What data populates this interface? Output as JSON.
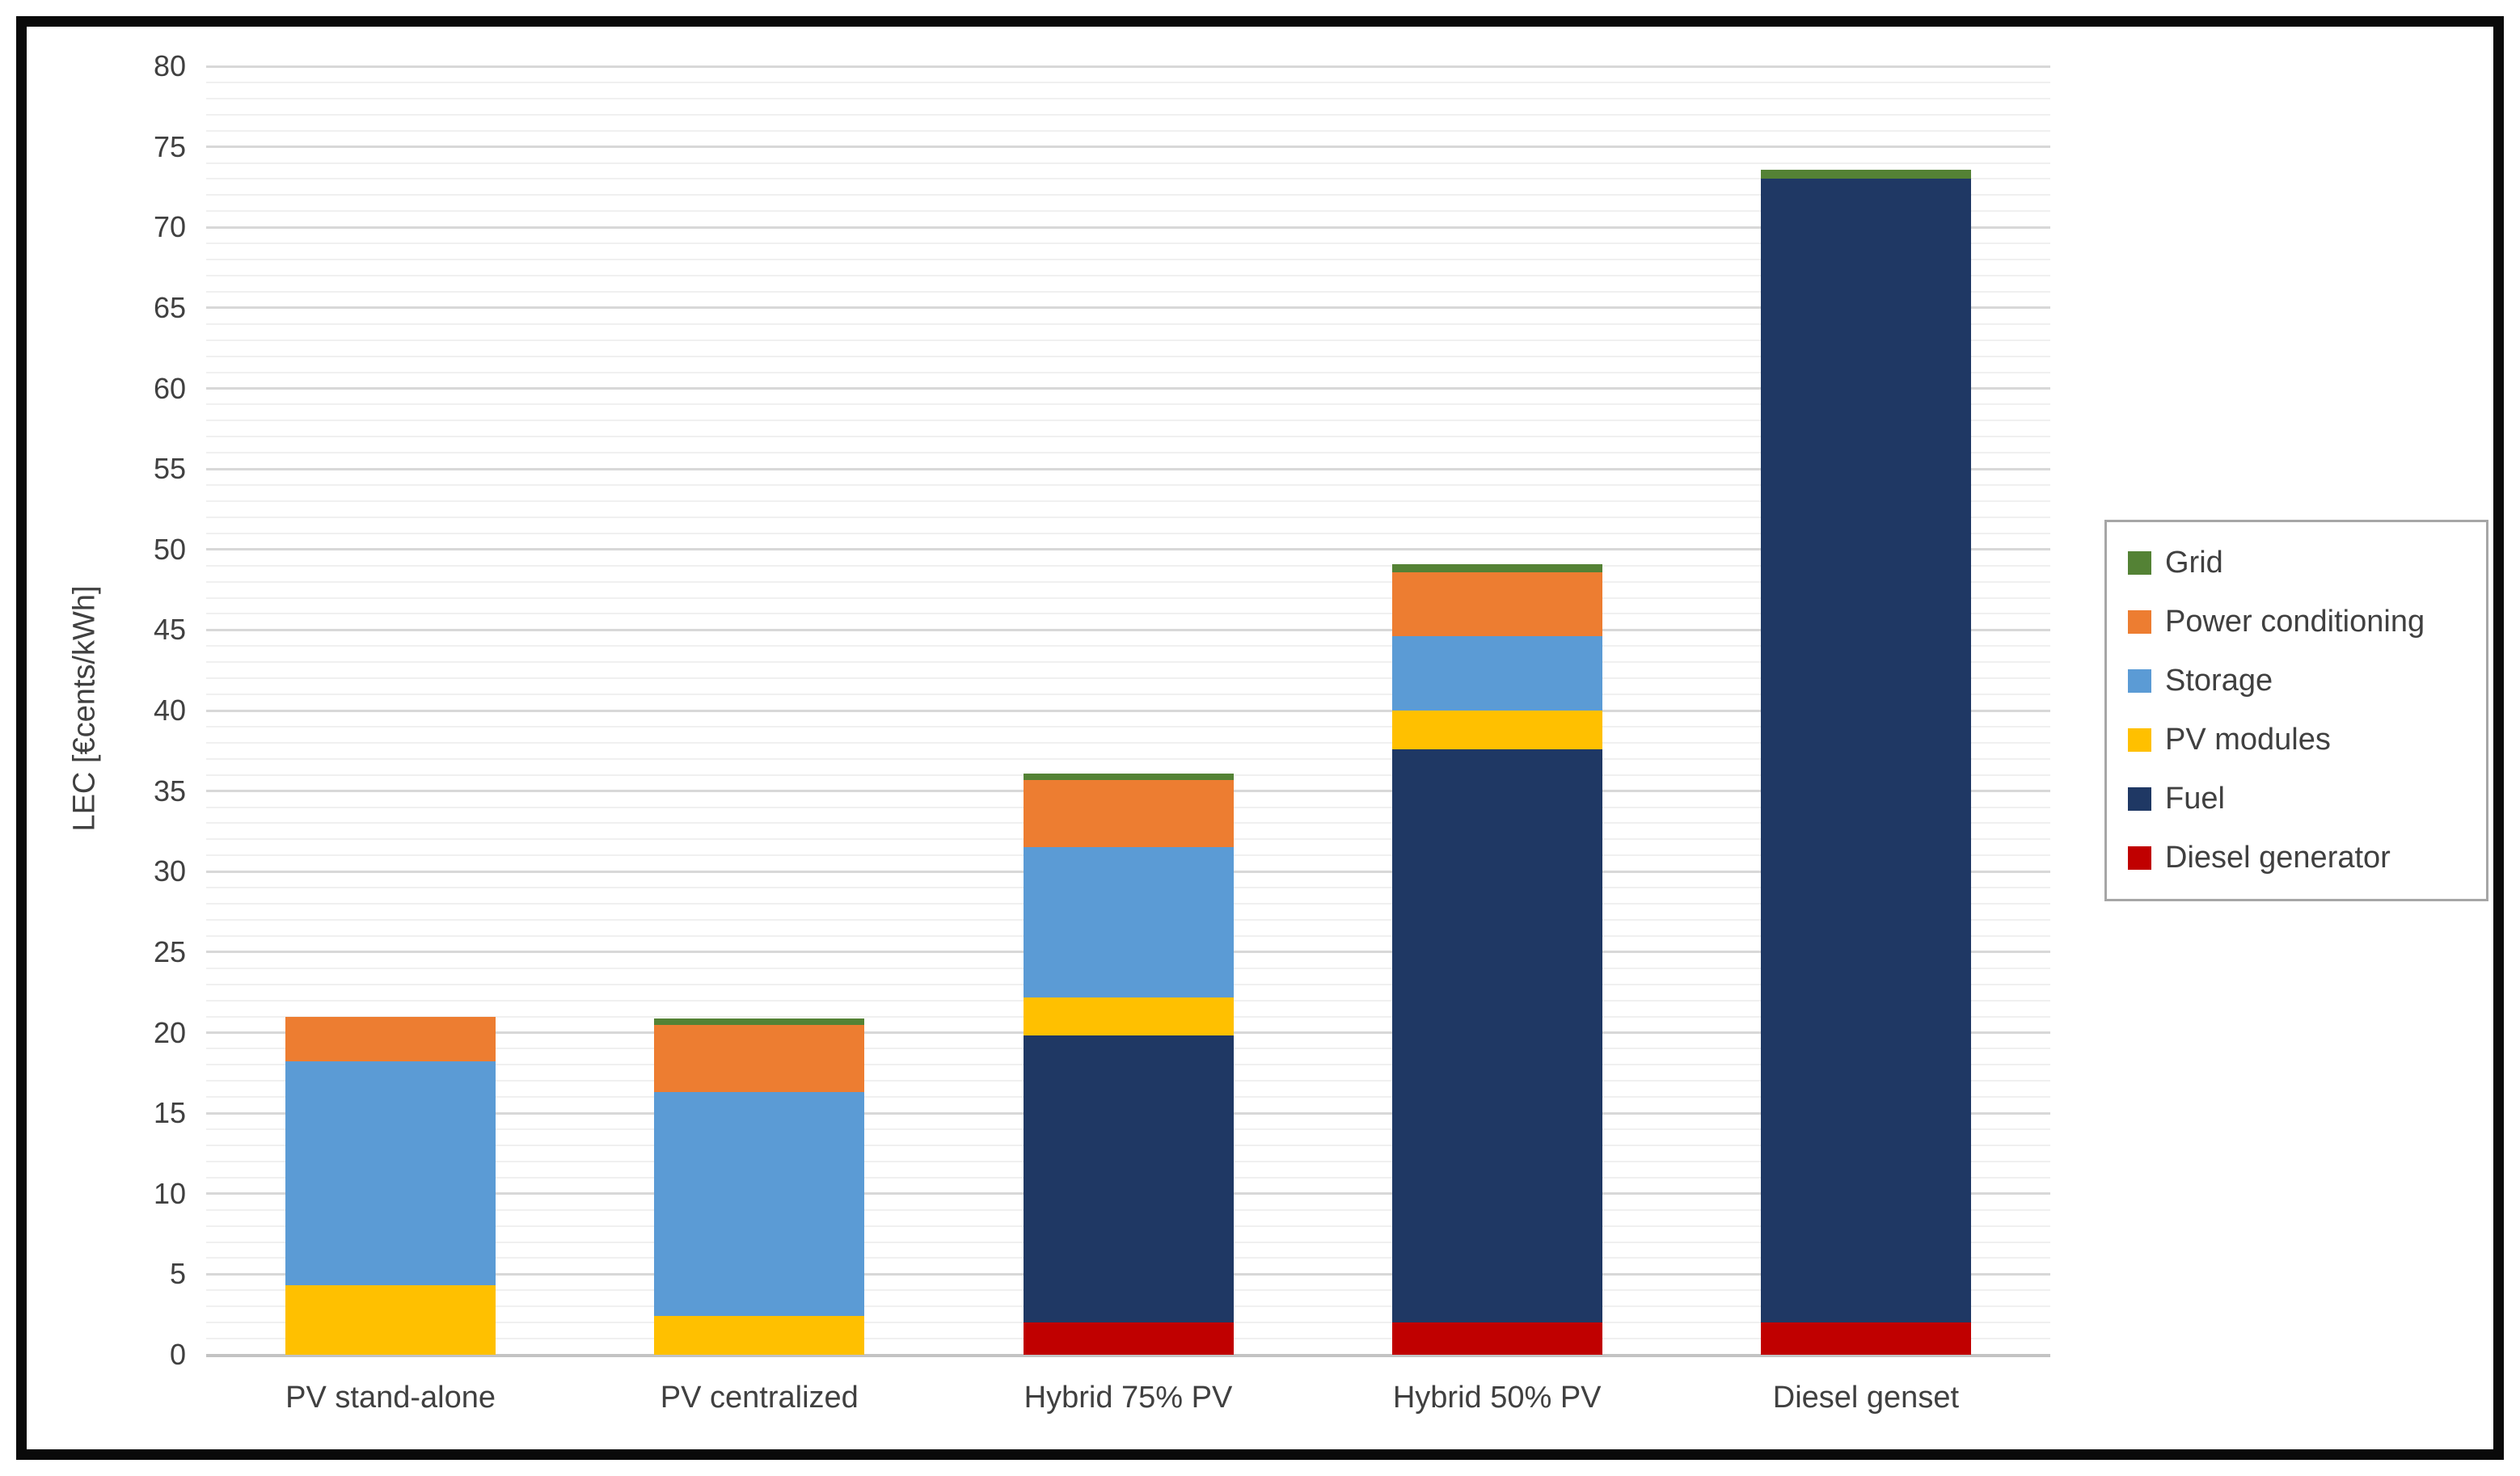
{
  "figure": {
    "background": "#ffffff",
    "frame_color": "#0a0a0a"
  },
  "chart_data": {
    "type": "bar",
    "stacked": true,
    "title": "",
    "xlabel": "",
    "ylabel": "LEC [€cents/kWh]",
    "ylim": [
      0,
      80
    ],
    "ytick_step": 5,
    "minor_grid_step": 1,
    "grid": true,
    "legend_position": "right",
    "categories": [
      "PV stand-alone",
      "PV centralized",
      "Hybrid 75% PV",
      "Hybrid 50% PV",
      "Diesel genset"
    ],
    "yticks": [
      0,
      5,
      10,
      15,
      20,
      25,
      30,
      35,
      40,
      45,
      50,
      55,
      60,
      65,
      70,
      75,
      80
    ],
    "series": [
      {
        "name": "Diesel generator",
        "color": "#C00000",
        "values": [
          0,
          0,
          2.0,
          2.0,
          2.0
        ]
      },
      {
        "name": "Fuel",
        "color": "#1F3864",
        "values": [
          0,
          0,
          17.8,
          35.6,
          71.0
        ]
      },
      {
        "name": "PV modules",
        "color": "#FFC000",
        "values": [
          4.3,
          2.4,
          2.4,
          2.4,
          0
        ]
      },
      {
        "name": "Storage",
        "color": "#5B9BD5",
        "values": [
          13.9,
          13.9,
          9.3,
          4.6,
          0
        ]
      },
      {
        "name": "Power conditioning",
        "color": "#ED7D31",
        "values": [
          2.8,
          4.2,
          4.2,
          4.0,
          0
        ]
      },
      {
        "name": "Grid",
        "color": "#548235",
        "values": [
          0,
          0.4,
          0.4,
          0.5,
          0.6
        ]
      }
    ],
    "totals": [
      21.0,
      20.9,
      36.1,
      49.1,
      73.6
    ],
    "legend_order": [
      "Grid",
      "Power conditioning",
      "Storage",
      "PV modules",
      "Fuel",
      "Diesel generator"
    ]
  }
}
